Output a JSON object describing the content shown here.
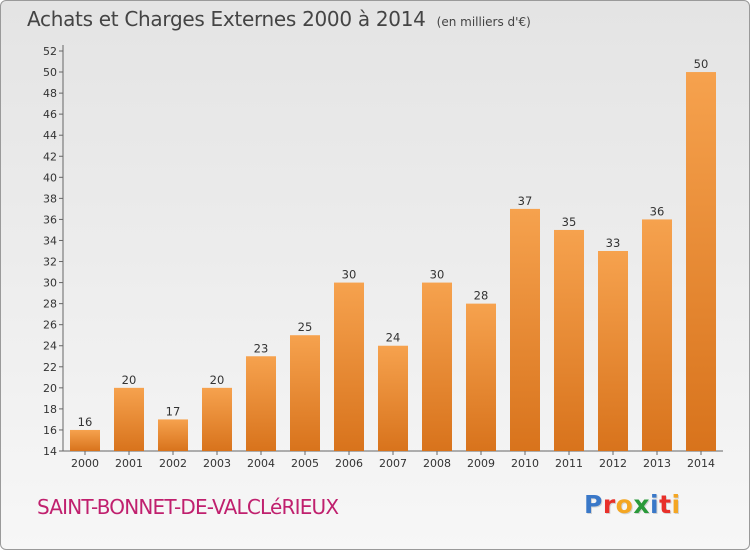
{
  "header": {
    "title": "Achats et Charges Externes 2000 à 2014",
    "unit": "(en milliers d'€)"
  },
  "footer": {
    "city": "SAINT-BONNET-DE-VALCLéRIEUX",
    "logo": {
      "letters": [
        "P",
        "r",
        "o",
        "x",
        "i",
        "t",
        "i"
      ],
      "colors": [
        "#3a78c8",
        "#e8302a",
        "#f4a623",
        "#2a9a3a",
        "#3a78c8",
        "#e8302a",
        "#f4a623"
      ]
    }
  },
  "chart_data": {
    "type": "bar",
    "title": "Achats et Charges Externes 2000 à 2014",
    "categories": [
      "2000",
      "2001",
      "2002",
      "2003",
      "2004",
      "2005",
      "2006",
      "2007",
      "2008",
      "2009",
      "2010",
      "2011",
      "2012",
      "2013",
      "2014"
    ],
    "values": [
      16,
      20,
      17,
      20,
      23,
      25,
      30,
      24,
      30,
      28,
      37,
      35,
      33,
      36,
      50
    ],
    "ylim": [
      14,
      52
    ],
    "ytick_step": 2,
    "grid": false,
    "bar_color_top": "#f6a24e",
    "bar_color_bottom": "#d8731c"
  }
}
